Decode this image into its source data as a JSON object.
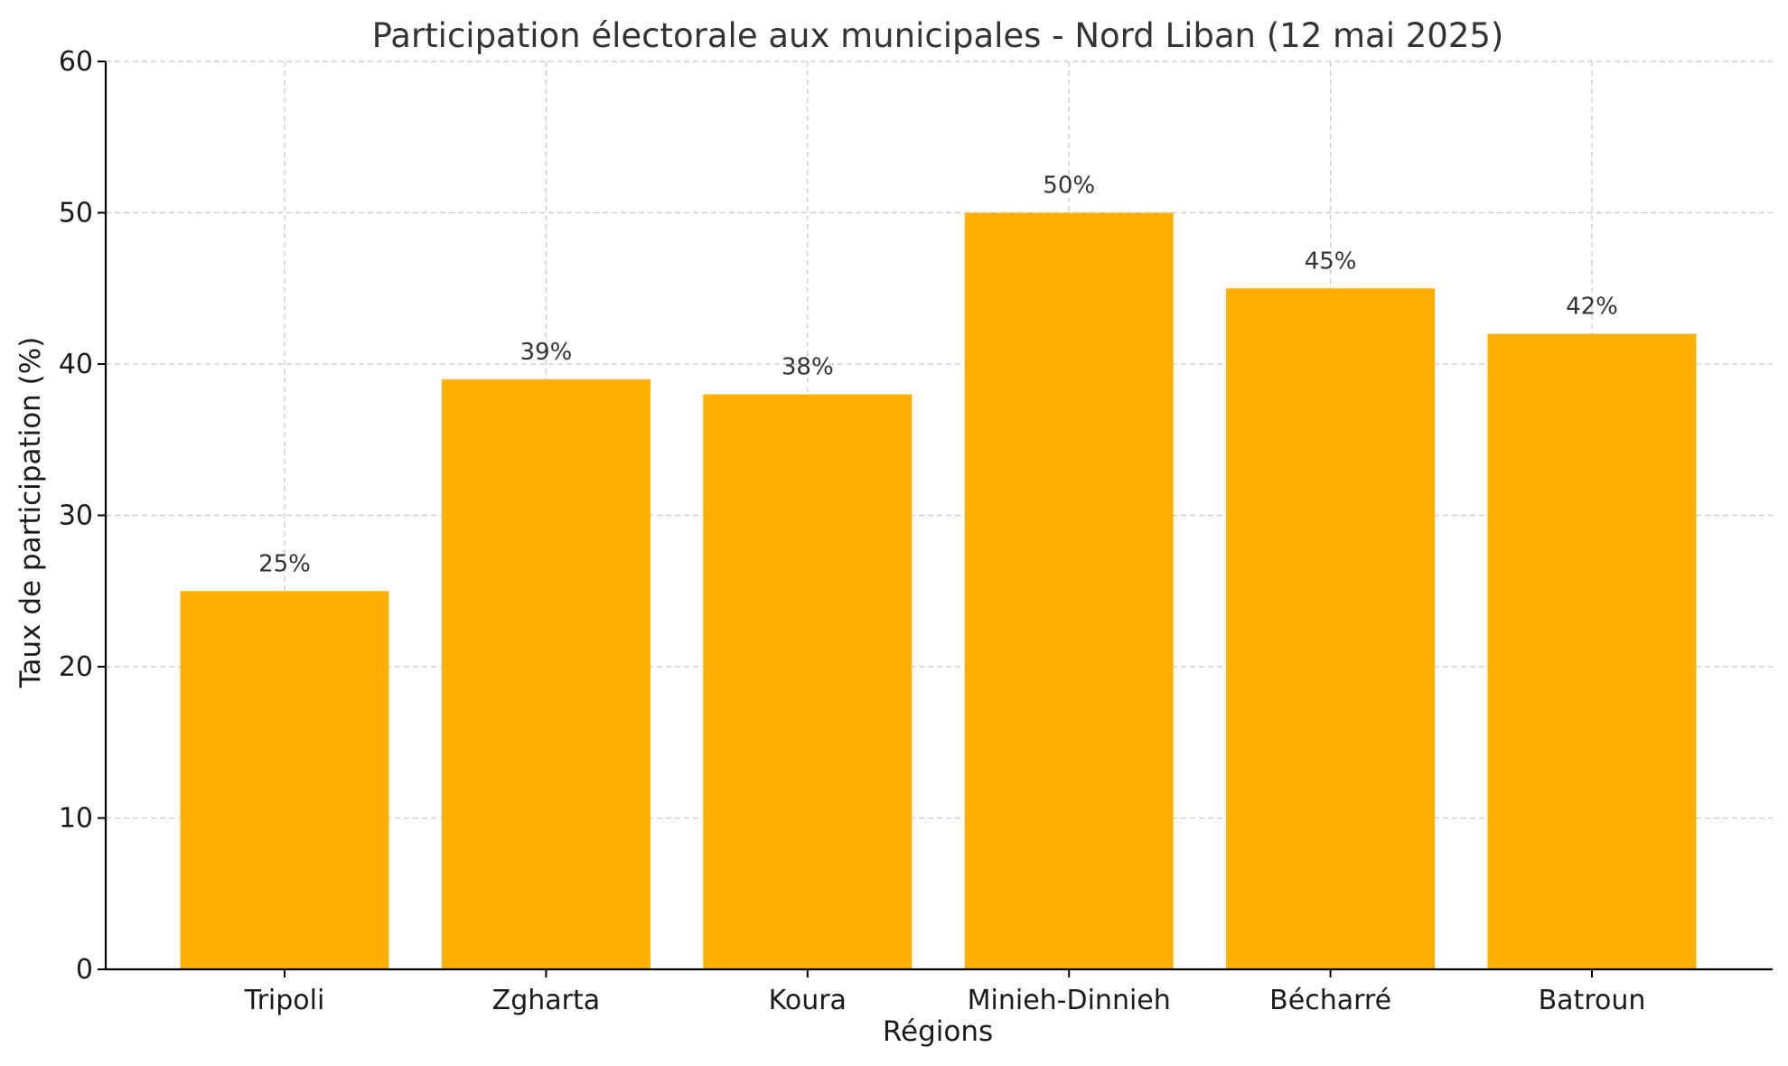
{
  "chart_data": {
    "type": "bar",
    "title": "Participation électorale aux municipales - Nord Liban (12 mai 2025)",
    "xlabel": "Régions",
    "ylabel": "Taux de participation (%)",
    "categories": [
      "Tripoli",
      "Zgharta",
      "Koura",
      "Minieh-Dinnieh",
      "Bécharré",
      "Batroun"
    ],
    "values": [
      25,
      39,
      38,
      50,
      45,
      42
    ],
    "data_labels": [
      "25%",
      "39%",
      "38%",
      "50%",
      "45%",
      "42%"
    ],
    "ylim": [
      0,
      60
    ],
    "yticks": [
      0,
      10,
      20,
      30,
      40,
      50,
      60
    ],
    "grid": true,
    "bar_color": "#FFB000"
  }
}
